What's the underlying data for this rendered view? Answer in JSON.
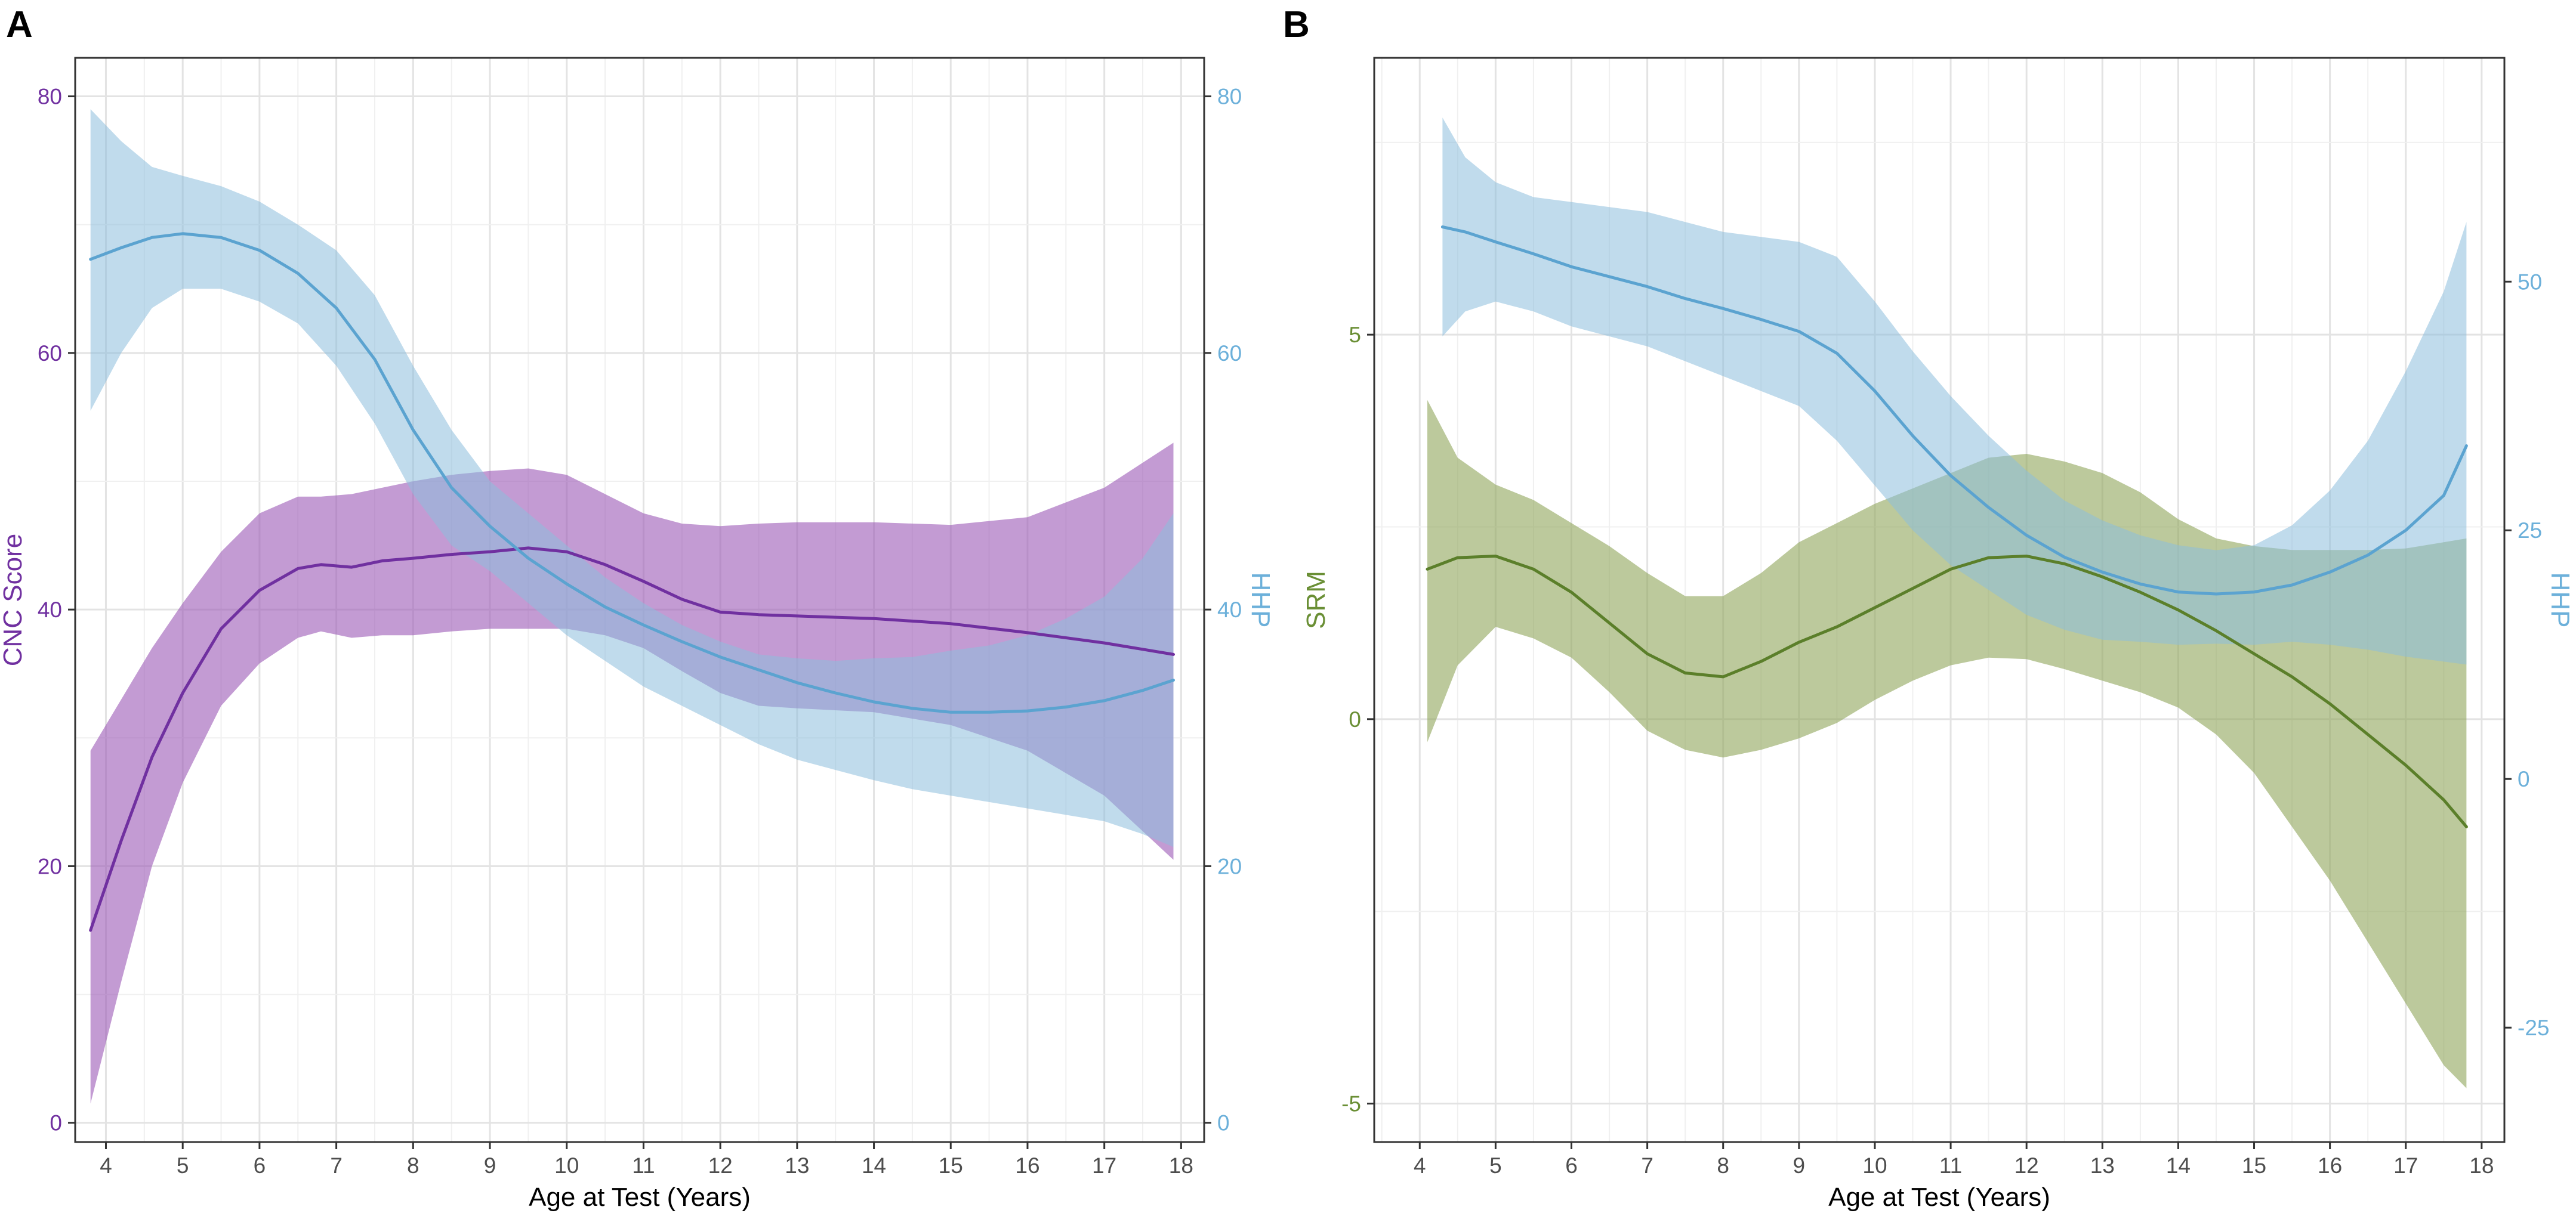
{
  "chart_data": [
    {
      "panel": "A",
      "type": "line",
      "xlabel": "Age at Test (Years)",
      "ylabel_left": "CNC Score",
      "ylabel_right": "HHP",
      "xlim": [
        3.6,
        18.3
      ],
      "ylim_left": [
        -1.5,
        83
      ],
      "ylim_right": [
        -1.5,
        83
      ],
      "x_ticks": [
        4,
        5,
        6,
        7,
        8,
        9,
        10,
        11,
        12,
        13,
        14,
        15,
        16,
        17,
        18
      ],
      "y_ticks_left": [
        0,
        20,
        40,
        60,
        80
      ],
      "y_ticks_right": [
        0,
        20,
        40,
        60,
        80
      ],
      "grid": true,
      "colors": {
        "left": "#7030A0",
        "right": "#5BA3D0",
        "left_band": "#9B59B6",
        "right_band": "#8DBDDD",
        "left_tick": "#7030A0",
        "right_tick": "#6CB0DA"
      },
      "series": [
        {
          "name": "CNC Score",
          "axis": "left",
          "x": [
            3.8,
            4.2,
            4.6,
            5.0,
            5.5,
            6.0,
            6.5,
            6.8,
            7.2,
            7.6,
            8.0,
            8.5,
            9.0,
            9.5,
            10.0,
            10.5,
            11.0,
            11.5,
            12.0,
            12.5,
            13.0,
            14.0,
            15.0,
            16.0,
            17.0,
            17.9
          ],
          "values": [
            15.0,
            22.0,
            28.5,
            33.5,
            38.5,
            41.5,
            43.2,
            43.5,
            43.3,
            43.8,
            44.0,
            44.3,
            44.5,
            44.8,
            44.5,
            43.5,
            42.2,
            40.8,
            39.8,
            39.6,
            39.5,
            39.3,
            38.9,
            38.2,
            37.4,
            36.5
          ],
          "upper": [
            29.0,
            33.0,
            37.0,
            40.5,
            44.5,
            47.5,
            48.8,
            48.8,
            49.0,
            49.5,
            50.0,
            50.5,
            50.8,
            51.0,
            50.5,
            49.0,
            47.5,
            46.7,
            46.5,
            46.7,
            46.8,
            46.8,
            46.6,
            47.2,
            49.5,
            53.0
          ],
          "lower": [
            1.5,
            11.0,
            20.0,
            26.5,
            32.5,
            35.8,
            37.8,
            38.3,
            37.8,
            38.0,
            38.0,
            38.3,
            38.5,
            38.5,
            38.5,
            38.0,
            37.0,
            35.2,
            33.5,
            32.5,
            32.3,
            32.0,
            31.0,
            29.0,
            25.5,
            20.5
          ]
        },
        {
          "name": "HHP",
          "axis": "right",
          "x": [
            3.8,
            4.2,
            4.6,
            5.0,
            5.5,
            6.0,
            6.5,
            7.0,
            7.5,
            8.0,
            8.5,
            9.0,
            9.5,
            10.0,
            10.5,
            11.0,
            11.5,
            12.0,
            12.5,
            13.0,
            13.5,
            14.0,
            14.5,
            15.0,
            15.5,
            16.0,
            16.5,
            17.0,
            17.5,
            17.9
          ],
          "values": [
            67.3,
            68.2,
            69.0,
            69.3,
            69.0,
            68.0,
            66.2,
            63.5,
            59.5,
            54.0,
            49.5,
            46.5,
            44.0,
            42.0,
            40.2,
            38.8,
            37.5,
            36.3,
            35.3,
            34.3,
            33.5,
            32.8,
            32.3,
            32.0,
            32.0,
            32.1,
            32.4,
            32.9,
            33.7,
            34.5
          ],
          "upper": [
            79.0,
            76.5,
            74.5,
            73.8,
            73.0,
            71.8,
            70.0,
            68.0,
            64.5,
            59.0,
            54.0,
            50.0,
            47.5,
            45.0,
            42.5,
            40.5,
            38.8,
            37.5,
            36.5,
            36.2,
            36.0,
            36.2,
            36.3,
            36.8,
            37.2,
            38.0,
            39.3,
            41.0,
            44.0,
            47.5
          ],
          "lower": [
            55.5,
            60.0,
            63.5,
            65.0,
            65.0,
            64.0,
            62.3,
            59.0,
            54.5,
            49.0,
            45.0,
            43.0,
            40.5,
            38.0,
            36.0,
            34.0,
            32.5,
            31.0,
            29.5,
            28.3,
            27.5,
            26.7,
            26.0,
            25.5,
            25.0,
            24.5,
            24.0,
            23.5,
            22.5,
            21.5
          ]
        }
      ]
    },
    {
      "panel": "B",
      "type": "line",
      "xlabel": "Age at Test (Years)",
      "ylabel_left": "SRM",
      "ylabel_right": "HHP",
      "xlim": [
        3.4,
        18.3
      ],
      "ylim_left": [
        -5.5,
        8.6
      ],
      "ylim_right": [
        -36.5,
        72.5
      ],
      "x_ticks": [
        4,
        5,
        6,
        7,
        8,
        9,
        10,
        11,
        12,
        13,
        14,
        15,
        16,
        17,
        18
      ],
      "y_ticks_left": [
        -5,
        0,
        5
      ],
      "y_ticks_right": [
        -25,
        0,
        25,
        50
      ],
      "grid": true,
      "colors": {
        "left": "#5B7F2A",
        "right": "#5BA3D0",
        "left_band": "#8FA55A",
        "right_band": "#8DBDDD",
        "left_tick": "#6A8F35",
        "right_tick": "#6CB0DA"
      },
      "series": [
        {
          "name": "SRM",
          "axis": "left",
          "x": [
            4.1,
            4.5,
            5.0,
            5.5,
            6.0,
            6.5,
            7.0,
            7.5,
            8.0,
            8.5,
            9.0,
            9.5,
            10.0,
            10.5,
            11.0,
            11.5,
            12.0,
            12.5,
            13.0,
            13.5,
            14.0,
            14.5,
            15.0,
            15.5,
            16.0,
            16.5,
            17.0,
            17.5,
            17.8
          ],
          "values": [
            1.95,
            2.1,
            2.12,
            1.95,
            1.65,
            1.25,
            0.85,
            0.6,
            0.55,
            0.75,
            1.0,
            1.2,
            1.45,
            1.7,
            1.95,
            2.1,
            2.12,
            2.02,
            1.85,
            1.65,
            1.42,
            1.15,
            0.85,
            0.55,
            0.2,
            -0.2,
            -0.6,
            -1.05,
            -1.4
          ],
          "upper": [
            4.15,
            3.4,
            3.05,
            2.85,
            2.55,
            2.25,
            1.9,
            1.6,
            1.6,
            1.9,
            2.3,
            2.55,
            2.8,
            3.0,
            3.2,
            3.4,
            3.45,
            3.35,
            3.2,
            2.95,
            2.6,
            2.35,
            2.25,
            2.2,
            2.2,
            2.2,
            2.22,
            2.3,
            2.35
          ],
          "lower": [
            -0.3,
            0.7,
            1.2,
            1.05,
            0.8,
            0.35,
            -0.15,
            -0.4,
            -0.5,
            -0.4,
            -0.25,
            -0.05,
            0.25,
            0.5,
            0.7,
            0.8,
            0.78,
            0.65,
            0.5,
            0.35,
            0.15,
            -0.2,
            -0.7,
            -1.4,
            -2.1,
            -2.9,
            -3.7,
            -4.5,
            -4.8
          ]
        },
        {
          "name": "HHP",
          "axis": "right",
          "x": [
            4.3,
            4.6,
            5.0,
            5.5,
            6.0,
            6.5,
            7.0,
            7.5,
            8.0,
            8.5,
            9.0,
            9.5,
            10.0,
            10.5,
            11.0,
            11.5,
            12.0,
            12.5,
            13.0,
            13.5,
            14.0,
            14.5,
            15.0,
            15.5,
            16.0,
            16.5,
            17.0,
            17.5,
            17.8
          ],
          "values": [
            55.5,
            55.0,
            54.0,
            52.8,
            51.5,
            50.5,
            49.5,
            48.3,
            47.3,
            46.2,
            45.0,
            42.8,
            39.0,
            34.5,
            30.5,
            27.3,
            24.5,
            22.3,
            20.8,
            19.6,
            18.8,
            18.6,
            18.8,
            19.5,
            20.8,
            22.5,
            25.0,
            28.5,
            33.5
          ],
          "upper": [
            66.5,
            62.5,
            60.0,
            58.5,
            58.0,
            57.5,
            57.0,
            56.0,
            55.0,
            54.5,
            54.0,
            52.5,
            48.0,
            43.0,
            38.5,
            34.5,
            31.0,
            28.0,
            26.0,
            24.5,
            23.5,
            23.0,
            23.5,
            25.5,
            29.0,
            34.0,
            41.0,
            49.0,
            56.0
          ],
          "lower": [
            44.5,
            47.0,
            48.0,
            47.0,
            45.5,
            44.5,
            43.5,
            42.0,
            40.5,
            39.0,
            37.5,
            34.0,
            29.5,
            25.0,
            21.5,
            19.0,
            16.5,
            15.0,
            14.0,
            13.8,
            13.5,
            13.6,
            13.5,
            13.8,
            13.5,
            13.0,
            12.3,
            11.8,
            11.5
          ]
        }
      ]
    }
  ]
}
